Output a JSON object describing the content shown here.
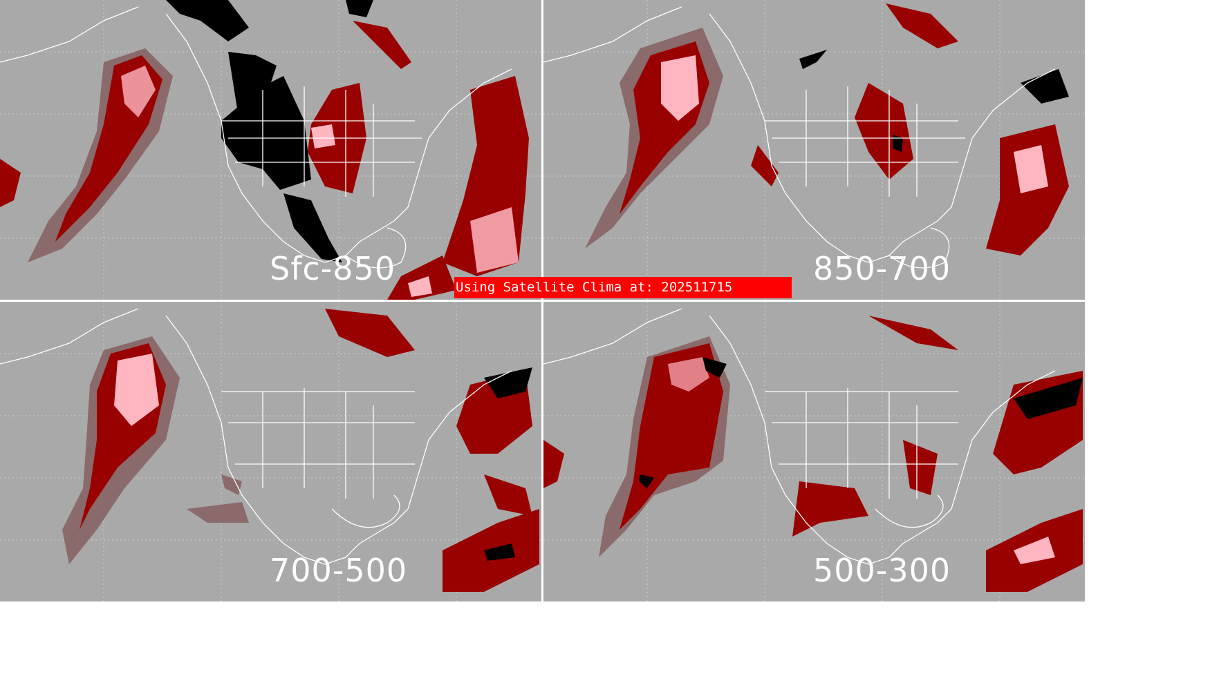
{
  "colors": {
    "background": "#a9a9a9",
    "dark_red": "#990000",
    "light_gray_red": "#8a6a6a",
    "pink": "#ffb6c1",
    "black": "#000000",
    "coast": "#ffffff",
    "banner": "#ff0000"
  },
  "panels": [
    {
      "label": "Sfc-850"
    },
    {
      "label": "850-700"
    },
    {
      "label": "700-500"
    },
    {
      "label": "500-300"
    }
  ],
  "banner": {
    "text": "Using Satellite Clima at: 202511715"
  }
}
